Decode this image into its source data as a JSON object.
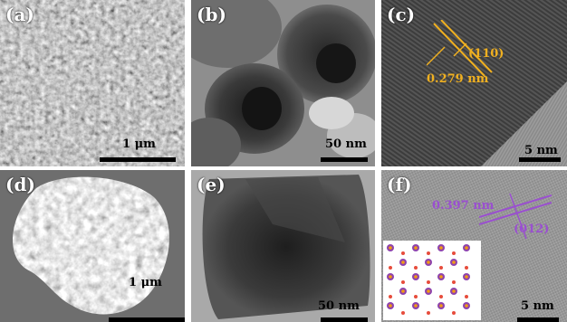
{
  "panels": {
    "a": {
      "label": "(a)",
      "scale": "1 μm"
    },
    "b": {
      "label": "(b)",
      "scale": "50 nm"
    },
    "c": {
      "label": "(c)",
      "scale": "5 nm",
      "plane": "(110)",
      "spacing": "0.279 nm",
      "annot_color": "#f0b020"
    },
    "d": {
      "label": "(d)",
      "scale": "1 μm"
    },
    "e": {
      "label": "(e)",
      "scale": "50 nm"
    },
    "f": {
      "label": "(f)",
      "scale": "5 nm",
      "plane": "(012)",
      "spacing": "0.397 nm",
      "annot_color": "#9a4fd0"
    }
  }
}
